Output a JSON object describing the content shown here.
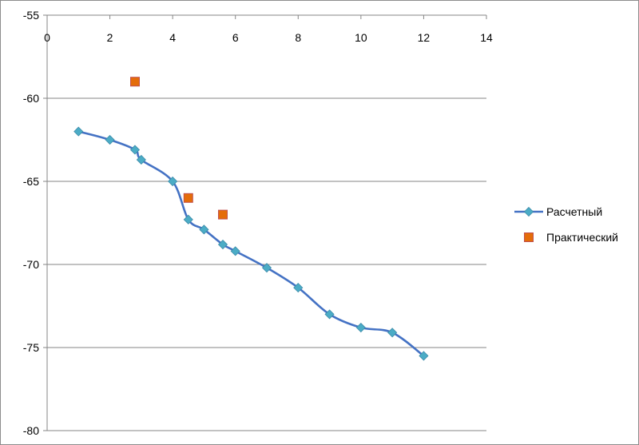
{
  "chart_data": {
    "type": "scatter",
    "x_axis": {
      "min": 0,
      "max": 14,
      "major": 2,
      "ticks": [
        "0",
        "2",
        "4",
        "6",
        "8",
        "10",
        "12",
        "14"
      ],
      "position": "top"
    },
    "y_axis": {
      "min": -80,
      "max": -55,
      "major": 5,
      "ticks": [
        "-55",
        "-60",
        "-65",
        "-70",
        "-75",
        "-80"
      ]
    },
    "grid": "horizontal-major",
    "legend_position": "right",
    "series": [
      {
        "name": "Расчетный",
        "style": "smooth-line-with-diamond-markers",
        "color": "#4472C4",
        "marker_color": "#4BACC6",
        "points": [
          {
            "x": 1,
            "y": -62
          },
          {
            "x": 2,
            "y": -62.5
          },
          {
            "x": 2.8,
            "y": -63.1
          },
          {
            "x": 3,
            "y": -63.7
          },
          {
            "x": 4,
            "y": -65
          },
          {
            "x": 4.5,
            "y": -67.3
          },
          {
            "x": 5,
            "y": -67.9
          },
          {
            "x": 5.6,
            "y": -68.8
          },
          {
            "x": 6,
            "y": -69.2
          },
          {
            "x": 7,
            "y": -70.2
          },
          {
            "x": 8,
            "y": -71.4
          },
          {
            "x": 9,
            "y": -73
          },
          {
            "x": 10,
            "y": -73.8
          },
          {
            "x": 11,
            "y": -74.1
          },
          {
            "x": 12,
            "y": -75.5
          }
        ]
      },
      {
        "name": "Практический",
        "style": "square-markers",
        "color": "#E46C0A",
        "marker_stroke": "#C0504D",
        "points": [
          {
            "x": 2.8,
            "y": -59
          },
          {
            "x": 4.5,
            "y": -66
          },
          {
            "x": 5.6,
            "y": -67
          }
        ]
      }
    ]
  }
}
